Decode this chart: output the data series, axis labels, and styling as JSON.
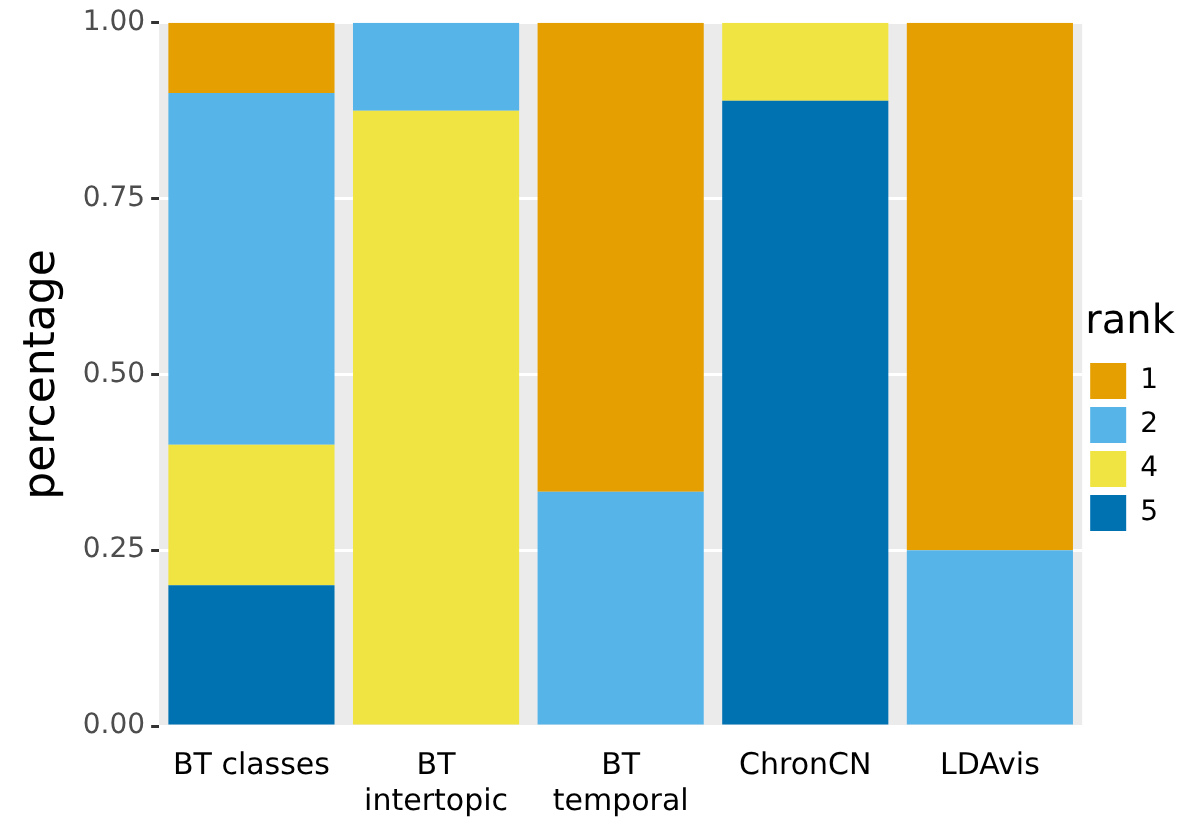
{
  "chart_data": {
    "type": "bar",
    "stacked": true,
    "ylabel": "percentage",
    "legend_title": "rank",
    "legend": "right",
    "grid": true,
    "categories": [
      "BT classes",
      "BT\nintertopic",
      "BT\ntemporal",
      "ChronCN",
      "LDAvis"
    ],
    "ylim": [
      0,
      1
    ],
    "yticks": [
      {
        "value": 0,
        "label": "0.00"
      },
      {
        "value": 0.25,
        "label": "0.25"
      },
      {
        "value": 0.5,
        "label": "0.50"
      },
      {
        "value": 0.75,
        "label": "0.75"
      },
      {
        "value": 1,
        "label": "1.00"
      }
    ],
    "series": [
      {
        "name": "5",
        "color": "#0072b2",
        "values": [
          0.2,
          0,
          0,
          0.889,
          0
        ]
      },
      {
        "name": "4",
        "color": "#f0e442",
        "values": [
          0.2,
          0.875,
          0,
          0.111,
          0
        ]
      },
      {
        "name": "2",
        "color": "#56b4e9",
        "values": [
          0.5,
          0.125,
          0.333,
          0,
          0.25
        ]
      },
      {
        "name": "1",
        "color": "#e69f00",
        "values": [
          0.1,
          0,
          0.667,
          0,
          0.75
        ]
      }
    ]
  }
}
